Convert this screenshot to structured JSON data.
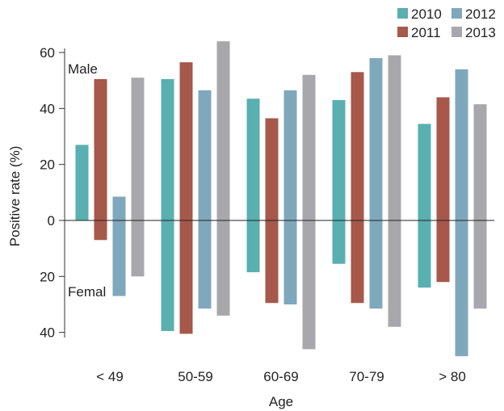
{
  "chart_data": {
    "type": "bar",
    "xlabel": "Age",
    "ylabel": "Positive rate (%)",
    "categories": [
      "< 49",
      "50-59",
      "60-69",
      "70-79",
      "> 80"
    ],
    "ylim_top": 60,
    "ylim_bottom": 40,
    "yticks": [
      {
        "value": 60,
        "label": "60"
      },
      {
        "value": 40,
        "label": "40"
      },
      {
        "value": 20,
        "label": "20"
      },
      {
        "value": 0,
        "label": "0"
      },
      {
        "value": -20,
        "label": "20"
      },
      {
        "value": -40,
        "label": "40"
      }
    ],
    "annotations": {
      "upper": "Male",
      "lower": "Femal"
    },
    "legend_position": "top-right",
    "series": [
      {
        "name": "2010",
        "color": "#5aafb0",
        "male": [
          27,
          50.5,
          43.5,
          43,
          34.5
        ],
        "female": [
          0,
          39.5,
          18.5,
          15.5,
          24
        ]
      },
      {
        "name": "2011",
        "color": "#a6584a",
        "male": [
          50.5,
          56.5,
          36.5,
          53,
          44
        ],
        "female": [
          7,
          40.5,
          29.5,
          29.5,
          22
        ]
      },
      {
        "name": "2012",
        "color": "#7fa8bc",
        "male": [
          8.5,
          46.5,
          46.5,
          58,
          54
        ],
        "female": [
          27,
          31.5,
          30,
          31.5,
          48.5
        ]
      },
      {
        "name": "2013",
        "color": "#a8a8ac",
        "male": [
          51,
          64,
          52,
          59,
          41.5
        ],
        "female": [
          20,
          34,
          46,
          38,
          31.5
        ]
      }
    ]
  }
}
